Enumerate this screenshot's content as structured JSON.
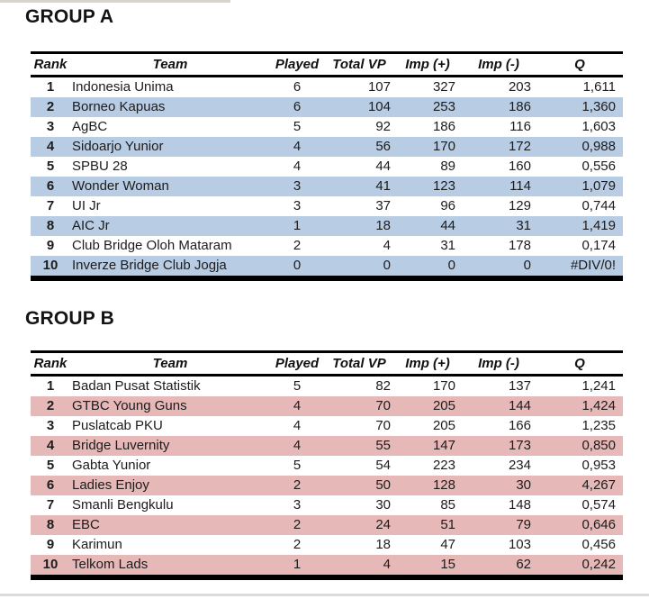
{
  "page": {
    "background": "#ffffff",
    "top_strip_color": "#d7d4cf",
    "bottom_strip_color": "#dbdbd9"
  },
  "columns": [
    "Rank",
    "Team",
    "Played",
    "Total VP",
    "Imp (+)",
    "Imp (-)",
    "Q"
  ],
  "groups": [
    {
      "title": "GROUP A",
      "highlight_color": "#b8cce4",
      "rows": [
        {
          "rank": "1",
          "team": "Indonesia Unima",
          "played": "6",
          "total_vp": "107",
          "imp_plus": "327",
          "imp_minus": "203",
          "q": "1,611"
        },
        {
          "rank": "2",
          "team": "Borneo Kapuas",
          "played": "6",
          "total_vp": "104",
          "imp_plus": "253",
          "imp_minus": "186",
          "q": "1,360"
        },
        {
          "rank": "3",
          "team": "AgBC",
          "played": "5",
          "total_vp": "92",
          "imp_plus": "186",
          "imp_minus": "116",
          "q": "1,603"
        },
        {
          "rank": "4",
          "team": "Sidoarjo Yunior",
          "played": "4",
          "total_vp": "56",
          "imp_plus": "170",
          "imp_minus": "172",
          "q": "0,988"
        },
        {
          "rank": "5",
          "team": "SPBU 28",
          "played": "4",
          "total_vp": "44",
          "imp_plus": "89",
          "imp_minus": "160",
          "q": "0,556"
        },
        {
          "rank": "6",
          "team": "Wonder Woman",
          "played": "3",
          "total_vp": "41",
          "imp_plus": "123",
          "imp_minus": "114",
          "q": "1,079"
        },
        {
          "rank": "7",
          "team": "UI Jr",
          "played": "3",
          "total_vp": "37",
          "imp_plus": "96",
          "imp_minus": "129",
          "q": "0,744"
        },
        {
          "rank": "8",
          "team": "AIC Jr",
          "played": "1",
          "total_vp": "18",
          "imp_plus": "44",
          "imp_minus": "31",
          "q": "1,419"
        },
        {
          "rank": "9",
          "team": "Club Bridge Oloh Mataram",
          "played": "2",
          "total_vp": "4",
          "imp_plus": "31",
          "imp_minus": "178",
          "q": "0,174"
        },
        {
          "rank": "10",
          "team": "Inverze Bridge Club Jogja",
          "played": "0",
          "total_vp": "0",
          "imp_plus": "0",
          "imp_minus": "0",
          "q": "#DIV/0!"
        }
      ]
    },
    {
      "title": "GROUP B",
      "highlight_color": "#e6b8b7",
      "rows": [
        {
          "rank": "1",
          "team": "Badan Pusat Statistik",
          "played": "5",
          "total_vp": "82",
          "imp_plus": "170",
          "imp_minus": "137",
          "q": "1,241"
        },
        {
          "rank": "2",
          "team": "GTBC Young Guns",
          "played": "4",
          "total_vp": "70",
          "imp_plus": "205",
          "imp_minus": "144",
          "q": "1,424"
        },
        {
          "rank": "3",
          "team": "Puslatcab PKU",
          "played": "4",
          "total_vp": "70",
          "imp_plus": "205",
          "imp_minus": "166",
          "q": "1,235"
        },
        {
          "rank": "4",
          "team": "Bridge Luvernity",
          "played": "4",
          "total_vp": "55",
          "imp_plus": "147",
          "imp_minus": "173",
          "q": "0,850"
        },
        {
          "rank": "5",
          "team": "Gabta Yunior",
          "played": "5",
          "total_vp": "54",
          "imp_plus": "223",
          "imp_minus": "234",
          "q": "0,953"
        },
        {
          "rank": "6",
          "team": "Ladies Enjoy",
          "played": "2",
          "total_vp": "50",
          "imp_plus": "128",
          "imp_minus": "30",
          "q": "4,267"
        },
        {
          "rank": "7",
          "team": "Smanli Bengkulu",
          "played": "3",
          "total_vp": "30",
          "imp_plus": "85",
          "imp_minus": "148",
          "q": "0,574"
        },
        {
          "rank": "8",
          "team": "EBC",
          "played": "2",
          "total_vp": "24",
          "imp_plus": "51",
          "imp_minus": "79",
          "q": "0,646"
        },
        {
          "rank": "9",
          "team": "Karimun",
          "played": "2",
          "total_vp": "18",
          "imp_plus": "47",
          "imp_minus": "103",
          "q": "0,456"
        },
        {
          "rank": "10",
          "team": "Telkom Lads",
          "played": "1",
          "total_vp": "4",
          "imp_plus": "15",
          "imp_minus": "62",
          "q": "0,242"
        }
      ]
    }
  ]
}
